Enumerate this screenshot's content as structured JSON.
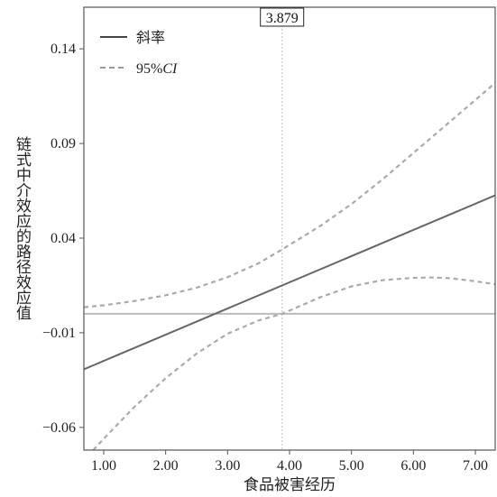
{
  "chart_data": {
    "type": "line",
    "xlabel": "食品被害经历",
    "ylabel": "链式中介效应的路径效应值",
    "xlim": [
      0.68,
      7.32
    ],
    "ylim": [
      -0.072,
      0.162
    ],
    "x_ticks": [
      1,
      2,
      3,
      4,
      5,
      6,
      7
    ],
    "x_tick_labels": [
      "1.00",
      "2.00",
      "3.00",
      "4.00",
      "5.00",
      "6.00",
      "7.00"
    ],
    "y_ticks": [
      -0.06,
      -0.01,
      0.04,
      0.09,
      0.14
    ],
    "y_tick_labels": [
      "−0.06",
      "−0.01",
      "0.04",
      "0.09",
      "0.14"
    ],
    "grid": false,
    "legend_position": "top-left",
    "reference_line_y": 0,
    "marker_x": 3.879,
    "marker_label": "3.879",
    "legend": [
      {
        "label": "斜率",
        "style": "solid"
      },
      {
        "label_prefix": "95%",
        "label_italic": "CI",
        "style": "dashed"
      }
    ],
    "series": [
      {
        "name": "斜率",
        "style": "solid",
        "color": "#666666",
        "x": [
          0.68,
          7.32
        ],
        "y": [
          -0.0293,
          0.0626
        ]
      },
      {
        "name": "95%CI",
        "style": "dashed",
        "color": "#aaaaaa",
        "band": "upper",
        "x": [
          0.68,
          1.0,
          1.5,
          2.0,
          2.5,
          3.0,
          3.5,
          3.879,
          4.5,
          5.0,
          5.5,
          6.0,
          6.5,
          7.0,
          7.32
        ],
        "y": [
          0.0035,
          0.0045,
          0.0068,
          0.0098,
          0.0138,
          0.0194,
          0.0267,
          0.034,
          0.0465,
          0.058,
          0.071,
          0.085,
          0.099,
          0.113,
          0.122
        ]
      },
      {
        "name": "95%CI",
        "style": "dashed",
        "color": "#aaaaaa",
        "band": "lower",
        "x": [
          0.83,
          1.0,
          1.5,
          2.0,
          2.5,
          3.0,
          3.5,
          3.879,
          4.5,
          5.0,
          5.5,
          6.0,
          6.3,
          6.6,
          7.0,
          7.32
        ],
        "y": [
          -0.072,
          -0.066,
          -0.049,
          -0.034,
          -0.021,
          -0.0105,
          -0.0035,
          0.0,
          0.0088,
          0.0145,
          0.0178,
          0.019,
          0.0192,
          0.0188,
          0.0172,
          0.0156
        ]
      }
    ]
  }
}
